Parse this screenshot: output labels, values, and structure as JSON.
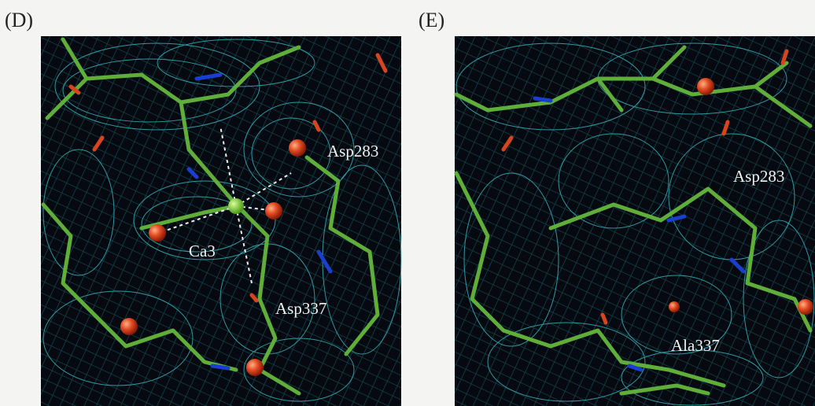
{
  "panels": [
    {
      "label": "(D)",
      "annotations": [
        "Asp283",
        "Ca3",
        "Asp337"
      ]
    },
    {
      "label": "(E)",
      "annotations": [
        "Asp283",
        "Ala337"
      ]
    }
  ]
}
